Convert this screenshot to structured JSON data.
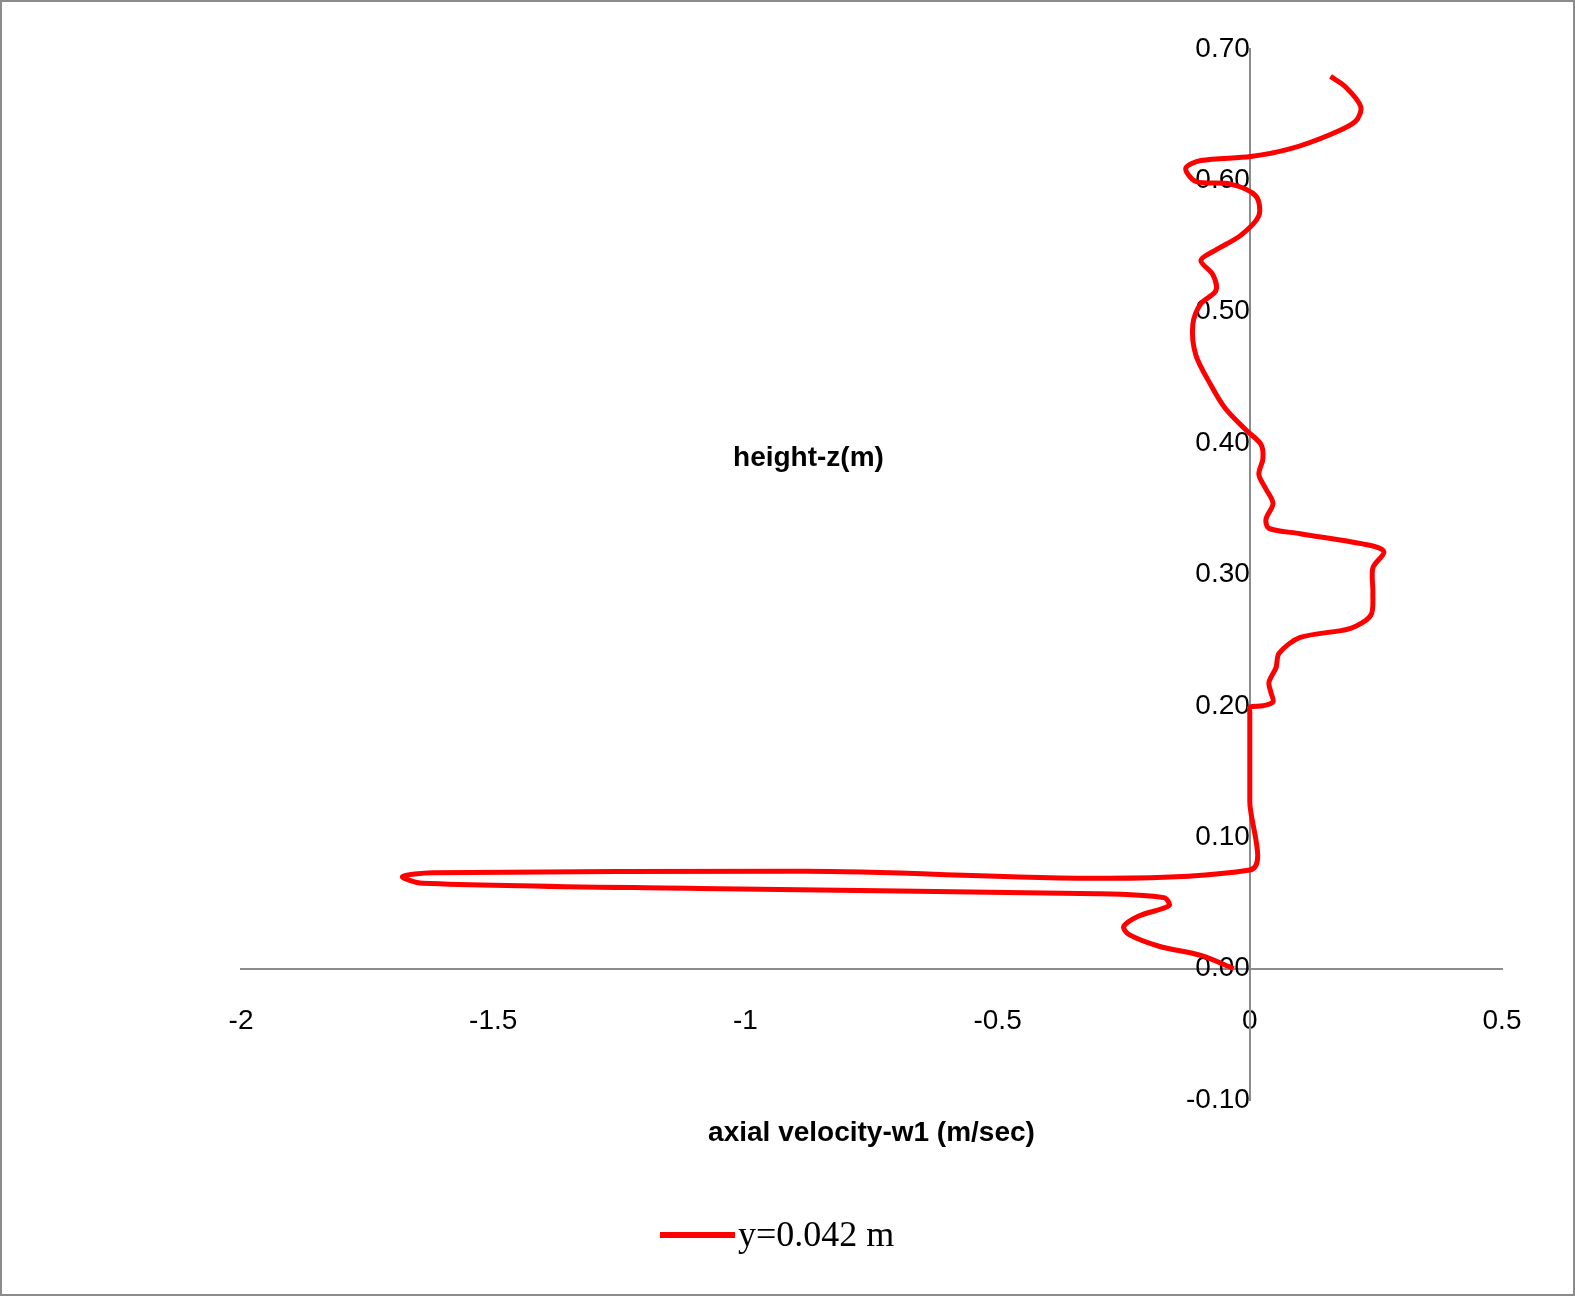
{
  "chart_data": {
    "type": "line",
    "x_label": "axial velocity-w1 (m/sec)",
    "y_label": "height-z(m)",
    "xlim": [
      -2,
      0.5
    ],
    "xticks": [
      -2,
      -1.5,
      -1,
      -0.5,
      0,
      0.5
    ],
    "ylim": [
      -0.1,
      0.7
    ],
    "yticks": [
      {
        "value": -0.1,
        "label": "-0.10"
      },
      {
        "value": 0,
        "label": "0.00"
      },
      {
        "value": 0.1,
        "label": "0.10"
      },
      {
        "value": 0.2,
        "label": "0.20"
      },
      {
        "value": 0.3,
        "label": "0.30"
      },
      {
        "value": 0.4,
        "label": "0.40"
      },
      {
        "value": 0.5,
        "label": "0.50"
      },
      {
        "value": 0.6,
        "label": "0.60"
      },
      {
        "value": 0.7,
        "label": "0.70"
      }
    ],
    "grid": false,
    "legend": "bottom",
    "x": [
      -0.032,
      -0.097,
      -0.18,
      -0.24,
      -0.25,
      -0.22,
      -0.16,
      -0.17,
      -0.3,
      -1.09,
      -1.64,
      -1.68,
      -1.62,
      -0.89,
      0,
      0,
      0,
      0,
      0.026,
      0.046,
      0.042,
      0.038,
      0.052,
      0.058,
      0.1,
      0.2,
      0.24,
      0.244,
      0.244,
      0.266,
      0.24,
      0.1,
      0.038,
      0.032,
      0.046,
      0.032,
      0.018,
      0.026,
      0.022,
      -0.008,
      -0.048,
      -0.077,
      -0.107,
      -0.113,
      -0.097,
      -0.067,
      -0.073,
      -0.097,
      -0.067,
      -0.018,
      0.018,
      0.012,
      -0.038,
      -0.107,
      -0.127,
      -0.097,
      0.002,
      0.081,
      0.161,
      0.21,
      0.22,
      0.19,
      0.16
    ],
    "series": [
      {
        "name": "y=0.042 m",
        "color": "#ff0000",
        "line_style": "solid",
        "marker": "none",
        "values": [
          0,
          0.01,
          0.017,
          0.026,
          0.032,
          0.04,
          0.048,
          0.054,
          0.057,
          0.061,
          0.065,
          0.07,
          0.073,
          0.074,
          0.075,
          0.127,
          0.195,
          0.199,
          0.2,
          0.203,
          0.21,
          0.218,
          0.229,
          0.24,
          0.252,
          0.259,
          0.269,
          0.286,
          0.305,
          0.317,
          0.322,
          0.331,
          0.335,
          0.342,
          0.354,
          0.365,
          0.376,
          0.388,
          0.399,
          0.41,
          0.426,
          0.444,
          0.467,
          0.49,
          0.506,
          0.516,
          0.528,
          0.539,
          0.547,
          0.558,
          0.573,
          0.588,
          0.597,
          0.599,
          0.609,
          0.615,
          0.618,
          0.624,
          0.635,
          0.645,
          0.656,
          0.671,
          0.679
        ]
      }
    ]
  }
}
